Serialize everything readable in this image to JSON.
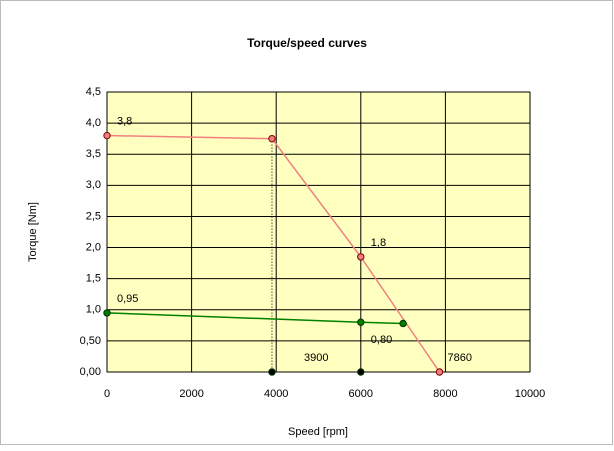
{
  "chart_data": {
    "type": "line",
    "title": "Torque/speed curves",
    "xlabel": "Speed [rpm]",
    "ylabel": "Torque [Nm]",
    "xlim": [
      0,
      10000
    ],
    "xticks": [
      0,
      2000,
      4000,
      6000,
      8000,
      10000
    ],
    "ylim": [
      0,
      4.5
    ],
    "yticks": [
      {
        "value": 0,
        "label": "0,00"
      },
      {
        "value": 0.5,
        "label": "0,50"
      },
      {
        "value": 1,
        "label": "1,0"
      },
      {
        "value": 1.5,
        "label": "1,5"
      },
      {
        "value": 2,
        "label": "2,0"
      },
      {
        "value": 2.5,
        "label": "2,5"
      },
      {
        "value": 3,
        "label": "3,0"
      },
      {
        "value": 3.5,
        "label": "3,5"
      },
      {
        "value": 4,
        "label": "4,0"
      },
      {
        "value": 4.5,
        "label": "4,5"
      }
    ],
    "grid": true,
    "series": [
      {
        "color": "#f08080",
        "x": [
          0,
          3900,
          6000,
          7860
        ],
        "values": [
          3.8,
          3.75,
          1.85,
          0
        ],
        "value_labels": [
          "3,8",
          null,
          "1,8",
          null
        ],
        "x_value_labels": [
          null,
          null,
          null,
          "7860"
        ]
      },
      {
        "color": "#008000",
        "x": [
          0,
          6000,
          7000
        ],
        "values": [
          0.95,
          0.8,
          0.78
        ],
        "value_labels": [
          "0,95",
          "0,80",
          null
        ],
        "x_value_labels": [
          null,
          null,
          null
        ]
      },
      {
        "color": "#000000",
        "x": [
          3900,
          6000
        ],
        "values": [
          0,
          0
        ],
        "value_labels": [
          null,
          null
        ],
        "x_value_labels": [
          "3900",
          null
        ]
      }
    ]
  }
}
